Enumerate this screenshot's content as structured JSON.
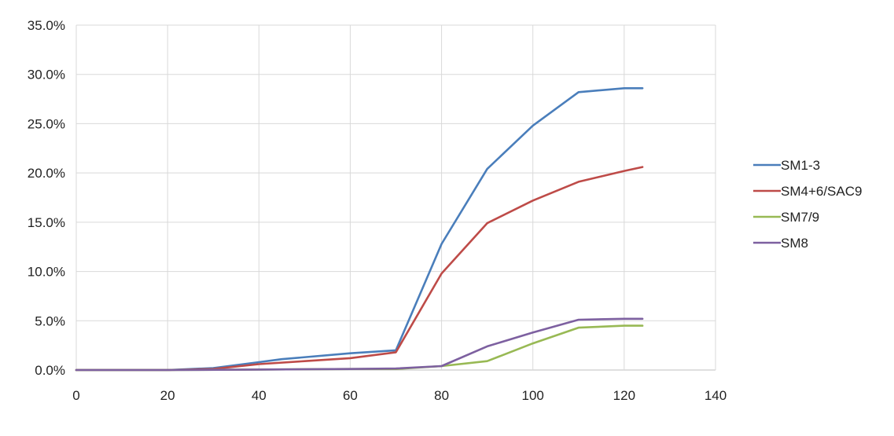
{
  "chart_data": {
    "type": "line",
    "title": "",
    "xlabel": "",
    "ylabel": "",
    "xlim": [
      0,
      140
    ],
    "ylim": [
      0,
      35
    ],
    "x_ticks": [
      "0",
      "20",
      "40",
      "60",
      "80",
      "100",
      "120",
      "140"
    ],
    "y_ticks": [
      "0.0%",
      "5.0%",
      "10.0%",
      "15.0%",
      "20.0%",
      "25.0%",
      "30.0%",
      "35.0%"
    ],
    "y_unit": "percent",
    "grid": "vertical and horizontal",
    "legend_position": "right",
    "series": [
      {
        "name": "SM1-3",
        "color": "#4a7ebb",
        "points": [
          [
            0,
            0
          ],
          [
            20,
            0
          ],
          [
            30,
            0.2
          ],
          [
            40,
            0.8
          ],
          [
            45,
            1.1
          ],
          [
            60,
            1.7
          ],
          [
            70,
            2.0
          ],
          [
            80,
            12.8
          ],
          [
            90,
            20.4
          ],
          [
            100,
            24.8
          ],
          [
            110,
            28.2
          ],
          [
            120,
            28.6
          ],
          [
            124,
            28.6
          ]
        ]
      },
      {
        "name": "SM4+6/SAC9",
        "color": "#be4b48",
        "points": [
          [
            0,
            0
          ],
          [
            20,
            0
          ],
          [
            30,
            0.1
          ],
          [
            40,
            0.6
          ],
          [
            50,
            0.9
          ],
          [
            60,
            1.2
          ],
          [
            70,
            1.8
          ],
          [
            80,
            9.8
          ],
          [
            90,
            14.9
          ],
          [
            100,
            17.2
          ],
          [
            110,
            19.1
          ],
          [
            120,
            20.2
          ],
          [
            124,
            20.6
          ]
        ]
      },
      {
        "name": "SM7/9",
        "color": "#98b954",
        "points": [
          [
            0,
            0
          ],
          [
            20,
            0
          ],
          [
            40,
            0.05
          ],
          [
            60,
            0.1
          ],
          [
            70,
            0.1
          ],
          [
            80,
            0.4
          ],
          [
            90,
            0.9
          ],
          [
            100,
            2.7
          ],
          [
            110,
            4.3
          ],
          [
            120,
            4.5
          ],
          [
            124,
            4.5
          ]
        ]
      },
      {
        "name": "SM8",
        "color": "#7d60a0",
        "points": [
          [
            0,
            0
          ],
          [
            20,
            0
          ],
          [
            40,
            0.05
          ],
          [
            60,
            0.1
          ],
          [
            70,
            0.15
          ],
          [
            80,
            0.4
          ],
          [
            90,
            2.4
          ],
          [
            100,
            3.8
          ],
          [
            110,
            5.1
          ],
          [
            120,
            5.2
          ],
          [
            124,
            5.2
          ]
        ]
      }
    ]
  }
}
